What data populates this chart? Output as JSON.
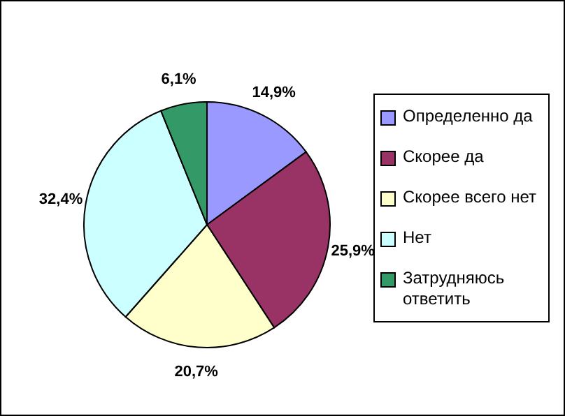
{
  "chart_data": {
    "type": "pie",
    "categories": [
      "Определенно да",
      "Скорее да",
      "Скорее всего нет",
      "Нет",
      "Затрудняюсь ответить"
    ],
    "values": [
      14.9,
      25.9,
      20.7,
      32.4,
      6.1
    ],
    "colors": [
      "#9999ff",
      "#993366",
      "#ffffcc",
      "#ccffff",
      "#339966"
    ],
    "value_labels": [
      "14,9%",
      "25,9%",
      "20,7%",
      "32,4%",
      "6,1%"
    ],
    "legend": "right"
  }
}
